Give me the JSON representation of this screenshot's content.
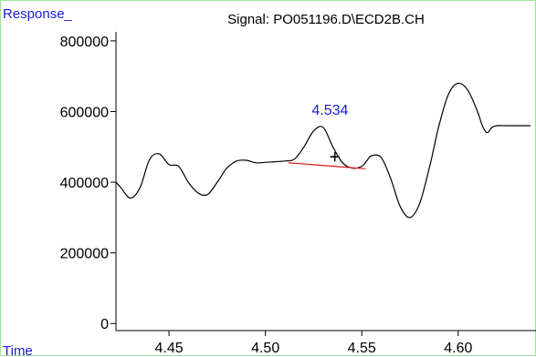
{
  "chart_data": {
    "type": "line",
    "title": "Signal: PO051196.D\\ECD2B.CH",
    "ylabel": "Response_",
    "xlabel": "Time",
    "xlim": [
      4.4225,
      4.6375
    ],
    "ylim": [
      -20000,
      810000
    ],
    "xticks": [
      4.45,
      4.5,
      4.55,
      4.6
    ],
    "xtick_labels": [
      "4.45",
      "4.50",
      "4.55",
      "4.60"
    ],
    "yticks": [
      0,
      200000,
      400000,
      600000,
      800000
    ],
    "ytick_labels": [
      "0",
      "200000",
      "400000",
      "600000",
      "800000"
    ],
    "grid": false,
    "series": [
      {
        "x": [
          4.4225,
          4.425,
          4.43,
          4.435,
          4.44,
          4.445,
          4.45,
          4.455,
          4.46,
          4.465,
          4.47,
          4.475,
          4.4775,
          4.48,
          4.485,
          4.49,
          4.495,
          4.5,
          4.505,
          4.51,
          4.515,
          4.52,
          4.525,
          4.53,
          4.535,
          4.54,
          4.545,
          4.55,
          4.5525,
          4.555,
          4.56,
          4.565,
          4.57,
          4.575,
          4.58,
          4.585,
          4.5875,
          4.59,
          4.595,
          4.6,
          4.605,
          4.61,
          4.6125,
          4.615,
          4.6175,
          4.62,
          4.625,
          4.63,
          4.635,
          4.6375
        ],
        "y": [
          400000,
          385000,
          355000,
          385000,
          465000,
          480000,
          450000,
          445000,
          400000,
          370000,
          365000,
          400000,
          420000,
          440000,
          460000,
          462000,
          455000,
          456000,
          458000,
          460000,
          465000,
          500000,
          545000,
          555000,
          500000,
          455000,
          440000,
          445000,
          460000,
          475000,
          470000,
          410000,
          330000,
          300000,
          340000,
          440000,
          500000,
          560000,
          650000,
          680000,
          660000,
          600000,
          560000,
          540000,
          555000,
          560000,
          560000,
          560000,
          560000,
          560000
        ]
      }
    ],
    "peak_label": "4.534",
    "baseline": {
      "x": [
        4.512,
        4.552
      ],
      "y": [
        455000,
        438000
      ]
    },
    "apex_marker": {
      "x": 4.536,
      "y": 472000
    },
    "colors": {
      "trace": "#000000",
      "baseline": "#e31a1a",
      "peak_label": "#1a1ae0",
      "axis_label": "#1a1ae0",
      "frame": "#9ee49e"
    }
  }
}
